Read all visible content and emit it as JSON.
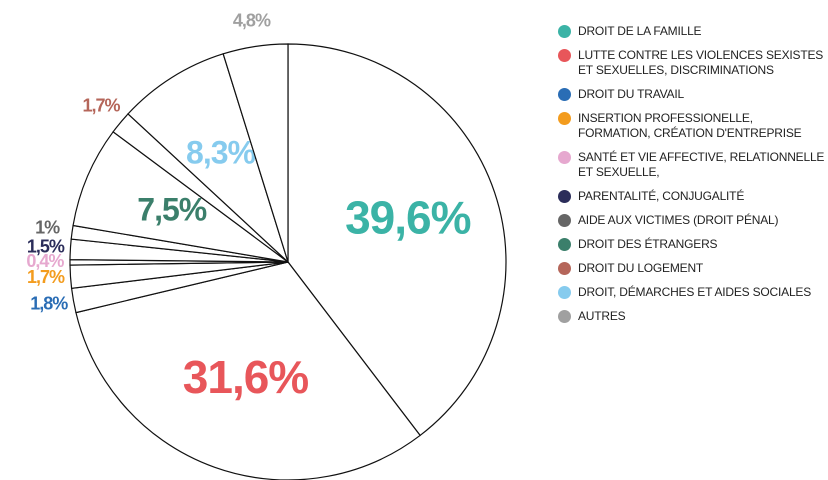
{
  "chart_data": {
    "type": "pie",
    "categories": [
      "DROIT DE LA FAMILLE",
      "LUTTE CONTRE LES VIOLENCES SEXISTES ET SEXUELLES, DISCRIMINATIONS",
      "DROIT DU TRAVAIL",
      "INSERTION PROFESSIONELLE, FORMATION, CRÉATION D'ENTREPRISE",
      "SANTÉ ET VIE AFFECTIVE, RELATIONNELLE ET SEXUELLE,",
      "PARENTALITÉ, CONJUGALITÉ",
      "AIDE AUX VICTIMES (DROIT PÉNAL)",
      "DROIT DES ÉTRANGERS",
      "DROIT DU LOGEMENT",
      "DROIT, DÉMARCHES ET AIDES SOCIALES",
      "AUTRES"
    ],
    "values": [
      39.6,
      31.6,
      1.8,
      1.7,
      0.4,
      1.5,
      1,
      7.5,
      1.7,
      8.3,
      4.8
    ],
    "value_labels": [
      "39,6%",
      "31,6%",
      "1,8%",
      "1,7%",
      "0,4%",
      "1,5%",
      "1%",
      "7,5%",
      "1,7%",
      "8,3%",
      "4,8%"
    ],
    "colors": [
      "#3bb3a6",
      "#e8565a",
      "#2a6db5",
      "#f39c1e",
      "#e6a8cf",
      "#2b2d5a",
      "#666666",
      "#3b7f6b",
      "#b5665a",
      "#86cbee",
      "#a0a0a0"
    ]
  }
}
